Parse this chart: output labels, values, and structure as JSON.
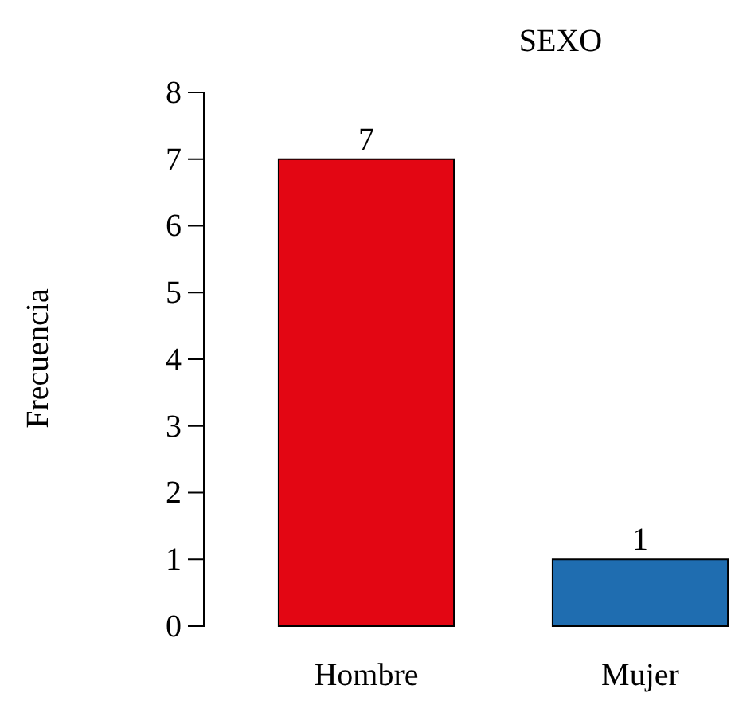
{
  "chart_data": {
    "type": "bar",
    "title": "SEXO",
    "ylabel": "Frecuencia",
    "categories": [
      "Hombre",
      "Mujer"
    ],
    "values": [
      7,
      1
    ],
    "colors": [
      "#e30613",
      "#1f6db0"
    ],
    "ylim": [
      0,
      8
    ],
    "yticks": [
      0,
      1,
      2,
      3,
      4,
      5,
      6,
      7,
      8
    ],
    "data_labels": true
  }
}
